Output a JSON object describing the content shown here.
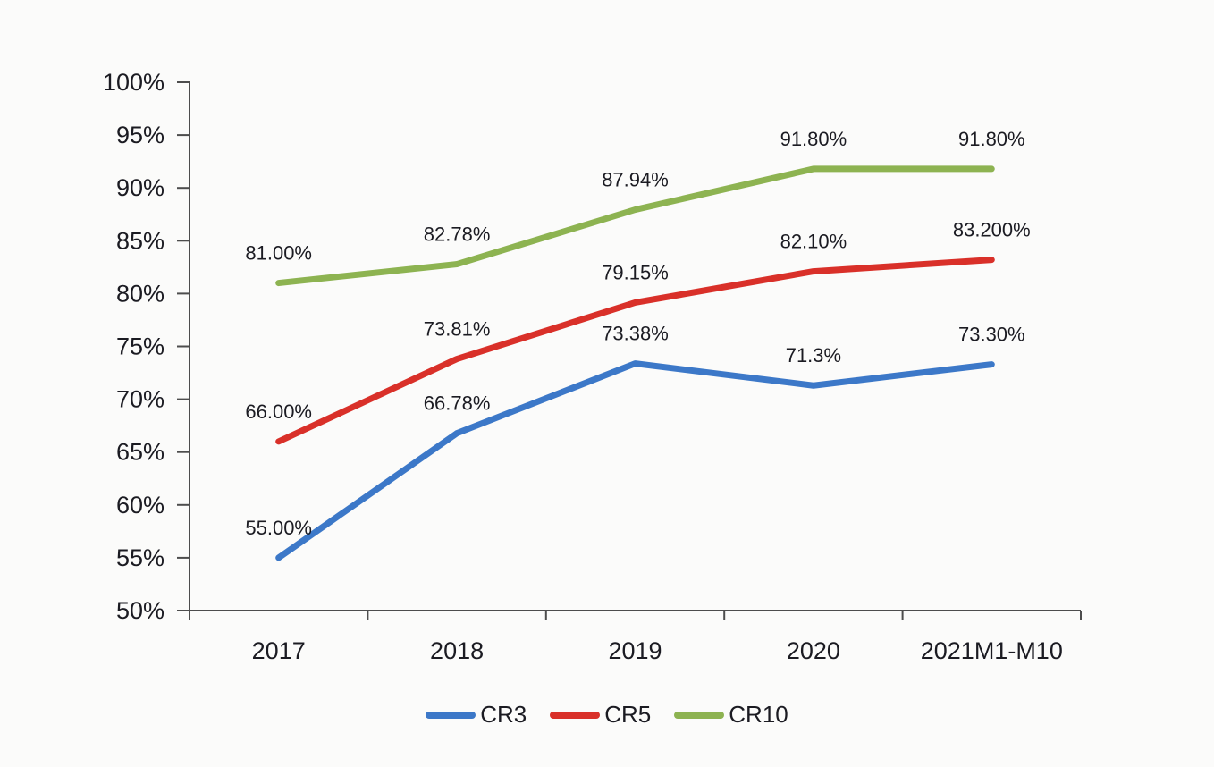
{
  "chart_data": {
    "type": "line",
    "title": "",
    "xlabel": "",
    "ylabel": "",
    "categories": [
      "2017",
      "2018",
      "2019",
      "2020",
      "2021M1-M10"
    ],
    "series": [
      {
        "name": "CR3",
        "color": "#3c78c8",
        "values": [
          55.0,
          66.78,
          73.38,
          71.3,
          73.3
        ],
        "labels": [
          "55.00%",
          "66.78%",
          "73.38%",
          "71.3%",
          "73.30%"
        ]
      },
      {
        "name": "CR5",
        "color": "#d93029",
        "values": [
          66.0,
          73.81,
          79.15,
          82.1,
          83.2
        ],
        "labels": [
          "66.00%",
          "73.81%",
          "79.15%",
          "82.10%",
          "83.200%"
        ]
      },
      {
        "name": "CR10",
        "color": "#8db351",
        "values": [
          81.0,
          82.78,
          87.94,
          91.8,
          91.8
        ],
        "labels": [
          "81.00%",
          "82.78%",
          "87.94%",
          "91.80%",
          "91.80%"
        ]
      }
    ],
    "ylim": [
      50,
      100
    ],
    "ytick_step": 5,
    "ytick_labels": [
      "50%",
      "55%",
      "60%",
      "65%",
      "70%",
      "75%",
      "80%",
      "85%",
      "90%",
      "95%",
      "100%"
    ],
    "grid": false,
    "legend_position": "bottom"
  },
  "legend": {
    "items": [
      {
        "label": "CR3",
        "color": "#3c78c8"
      },
      {
        "label": "CR5",
        "color": "#d93029"
      },
      {
        "label": "CR10",
        "color": "#8db351"
      }
    ]
  },
  "colors": {
    "background": "#fbfbfa",
    "axis": "#4d4d4d",
    "text": "#1b1b22"
  }
}
